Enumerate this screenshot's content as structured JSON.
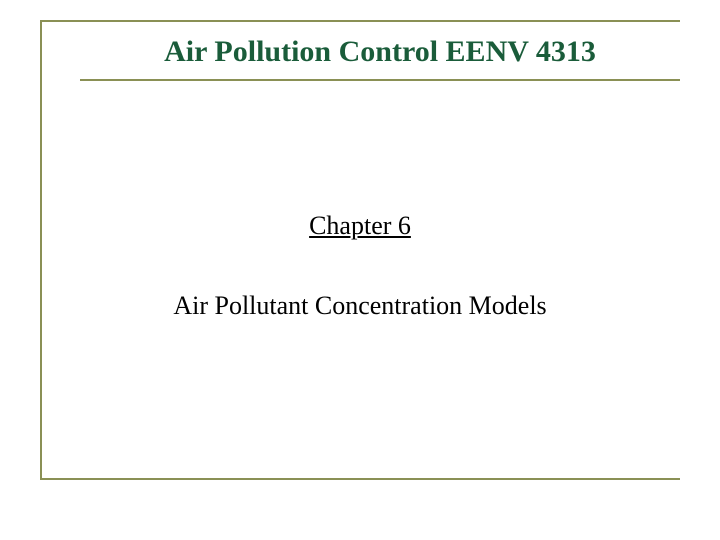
{
  "slide": {
    "title": "Air Pollution Control EENV 4313",
    "chapter": "Chapter 6",
    "subtitle": "Air Pollutant Concentration Models"
  },
  "styling": {
    "border_color": "#8a9055",
    "title_color": "#1a5c3a",
    "text_color": "#000000",
    "background_color": "#ffffff",
    "title_fontsize": 30,
    "chapter_fontsize": 26,
    "subtitle_fontsize": 26,
    "title_fontweight": "bold",
    "chapter_fontweight": "normal",
    "subtitle_fontweight": "normal",
    "border_width": 2
  }
}
